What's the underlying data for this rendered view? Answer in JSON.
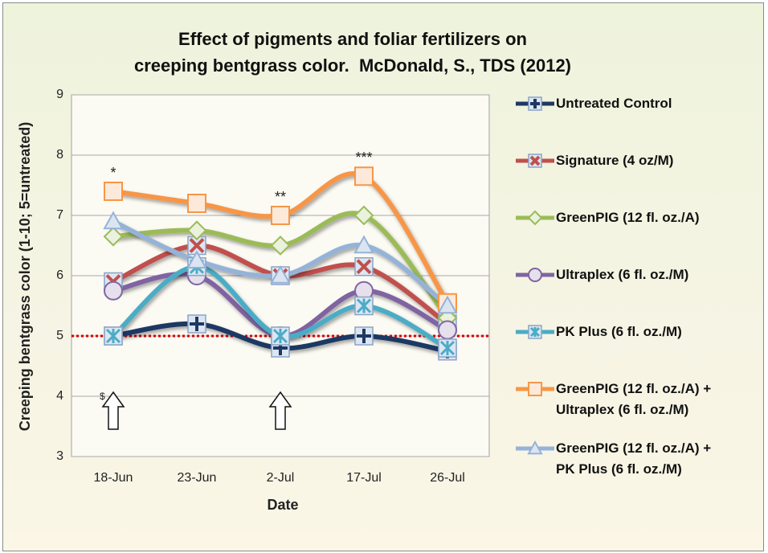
{
  "chart_data": {
    "type": "line",
    "title": "Effect of pigments and foliar fertilizers on\ncreeping bentgrass color.  McDonald, S., TDS (2012)",
    "x_label": "Date",
    "y_label": "Creeping bentgrass color (1-10; 5=untreated)",
    "categories": [
      "18-Jun",
      "23-Jun",
      "2-Jul",
      "17-Jul",
      "26-Jul"
    ],
    "series": [
      {
        "name": "Untreated Control",
        "color": "#1f3864",
        "marker": "plus",
        "values": [
          5.0,
          5.2,
          4.8,
          5.0,
          4.75
        ]
      },
      {
        "name": "Signature (4 oz/M)",
        "color": "#c0504d",
        "marker": "x",
        "values": [
          5.9,
          6.5,
          6.0,
          6.15,
          5.2
        ]
      },
      {
        "name": "GreenPIG (12 fl. oz./A)",
        "color": "#9bbb59",
        "marker": "diamond",
        "values": [
          6.65,
          6.75,
          6.5,
          7.0,
          5.3
        ]
      },
      {
        "name": "Ultraplex (6 fl. oz./M)",
        "color": "#8064a2",
        "marker": "circle",
        "values": [
          5.75,
          6.0,
          5.0,
          5.75,
          5.1
        ]
      },
      {
        "name": "PK Plus (6 fl. oz./M)",
        "color": "#4bacc6",
        "marker": "star",
        "values": [
          5.0,
          6.15,
          5.0,
          5.5,
          4.8
        ]
      },
      {
        "name": "GreenPIG (12 fl. oz./A) +\nUltraplex (6 fl. oz./M)",
        "color": "#f79646",
        "marker": "square",
        "values": [
          7.4,
          7.2,
          7.0,
          7.65,
          5.55
        ]
      },
      {
        "name": "GreenPIG (12 fl. oz./A) +\nPK Plus (6 fl. oz./M)",
        "color": "#95b3d7",
        "marker": "triangle",
        "values": [
          6.9,
          6.25,
          6.0,
          6.5,
          5.5
        ]
      }
    ],
    "ylim": [
      3,
      9
    ],
    "yticks": [
      3,
      4,
      5,
      6,
      7,
      8,
      9
    ],
    "grid": true,
    "reference_line": {
      "value": 5,
      "color": "#e00000"
    },
    "annotations": [
      {
        "text": "*",
        "x": "18-Jun"
      },
      {
        "text": "**",
        "x": "2-Jul"
      },
      {
        "text": "***",
        "x": "17-Jul"
      }
    ],
    "arrows": [
      {
        "x": "18-Jun",
        "label": "$"
      },
      {
        "x": "2-Jul"
      }
    ]
  }
}
